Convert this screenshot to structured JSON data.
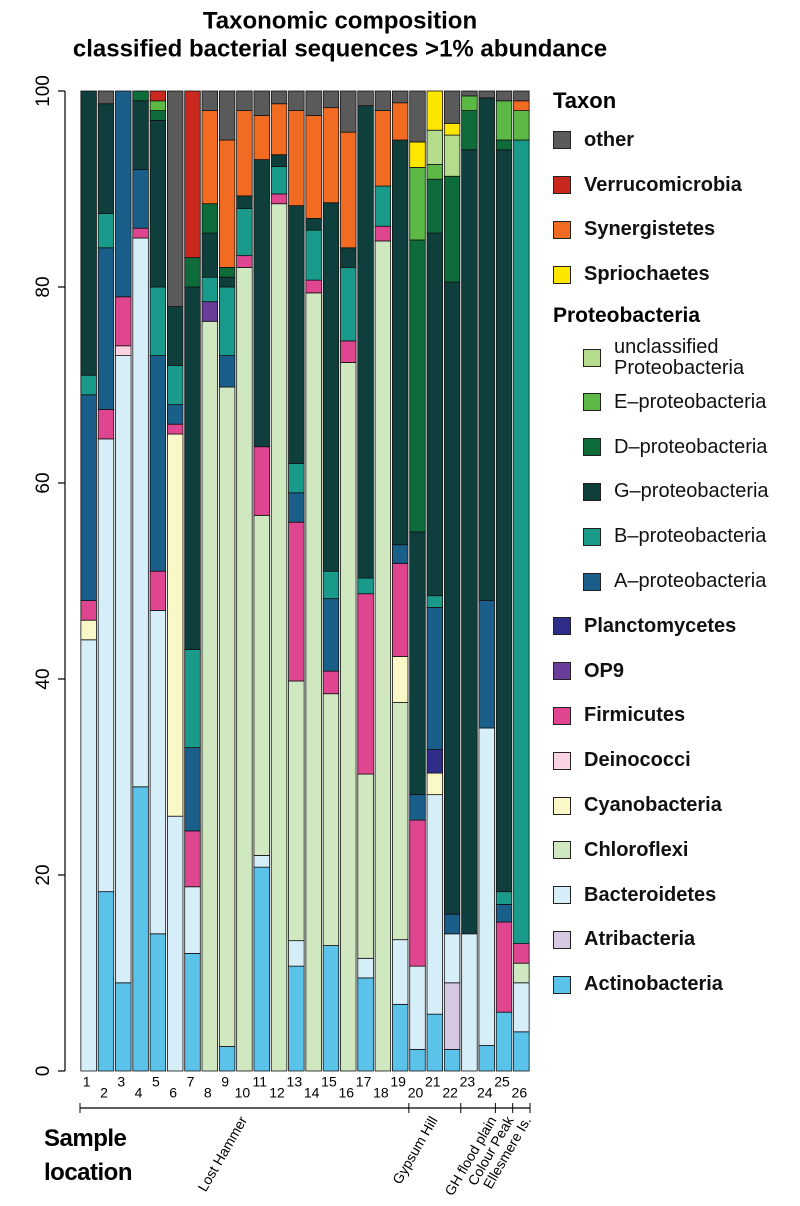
{
  "chart_data": {
    "type": "stacked_bar",
    "title": "Taxonomic composition",
    "subtitle": "classified bacterial sequences >1% abundance",
    "xlabel": "Sample location",
    "legend_title": "Taxon",
    "categories": [
      "1",
      "2",
      "3",
      "4",
      "5",
      "6",
      "7",
      "8",
      "9",
      "10",
      "11",
      "12",
      "13",
      "14",
      "15",
      "16",
      "17",
      "18",
      "19",
      "20",
      "21",
      "22",
      "23",
      "24",
      "25",
      "26"
    ],
    "groups": [
      {
        "name": "Lost Hammer",
        "count": 19
      },
      {
        "name": "Gypsum Hill",
        "count": 3
      },
      {
        "name": "GH flood plain",
        "count": 2
      },
      {
        "name": "Colour Peak",
        "count": 1
      },
      {
        "name": "Ellesmere Is.",
        "count": 1
      }
    ],
    "ylim": [
      0,
      100
    ],
    "yticks": [
      0,
      20,
      40,
      60,
      80,
      100
    ],
    "series": [
      {
        "name": "Actinobacteria",
        "color": "#5bc2ea",
        "values": [
          0,
          18.3,
          9,
          29,
          14,
          0,
          12,
          0,
          2.5,
          0,
          20.8,
          0,
          10.7,
          0,
          12.8,
          0,
          9.5,
          0,
          6.8,
          2.2,
          5.8,
          2.2,
          0,
          2.6,
          6,
          4
        ]
      },
      {
        "name": "Atribacteria",
        "color": "#d7c8e2",
        "values": [
          0,
          0,
          0,
          0,
          0,
          0,
          0,
          0,
          0,
          0,
          0,
          0,
          0,
          0,
          0,
          0,
          0,
          0,
          0,
          0,
          0,
          6.8,
          0,
          0,
          0,
          0
        ]
      },
      {
        "name": "Bacteroidetes",
        "color": "#d6eef8",
        "values": [
          44,
          46.2,
          64,
          56,
          33,
          26,
          6.8,
          0,
          0,
          0,
          1.2,
          0,
          2.6,
          0,
          0,
          0,
          2,
          0,
          6.6,
          8.5,
          22.4,
          5,
          14,
          32.4,
          0,
          5
        ]
      },
      {
        "name": "Chloroflexi",
        "color": "#cfe8c0",
        "values": [
          0,
          0,
          0,
          0,
          0,
          0,
          0,
          76.5,
          67.3,
          82,
          34.7,
          88.5,
          26.5,
          79.4,
          25.7,
          72.3,
          18.8,
          84.7,
          24.2,
          0,
          0,
          0,
          0,
          0,
          0,
          2
        ]
      },
      {
        "name": "Cyanobacteria",
        "color": "#fbf8c8",
        "values": [
          2,
          0,
          0,
          0,
          0,
          39,
          0,
          0,
          0,
          0,
          0,
          0,
          0,
          0,
          0,
          0,
          0,
          0,
          4.7,
          0,
          2.2,
          0,
          0,
          0,
          0,
          0
        ]
      },
      {
        "name": "Deinococci",
        "color": "#fcd3e2",
        "values": [
          0,
          0,
          1,
          0,
          0,
          0,
          0,
          0,
          0,
          0,
          0,
          0,
          0,
          0,
          0,
          0,
          0,
          0,
          0,
          0,
          0,
          0,
          0,
          0,
          0,
          0
        ]
      },
      {
        "name": "Firmicutes",
        "color": "#e0458f",
        "values": [
          2,
          3,
          5,
          1,
          4,
          1,
          5.7,
          0,
          0,
          1.2,
          7,
          1,
          16.2,
          1.3,
          2.3,
          2.2,
          18.4,
          1.5,
          9.5,
          14.9,
          0,
          0,
          0,
          0,
          9.2,
          2
        ]
      },
      {
        "name": "OP9",
        "color": "#6a3d9a",
        "values": [
          0,
          0,
          0,
          0,
          0,
          0,
          0,
          2,
          0,
          0,
          0,
          0,
          0,
          0,
          0,
          0,
          0,
          0,
          0,
          0,
          0,
          0,
          0,
          0,
          0,
          0
        ]
      },
      {
        "name": "Planctomycetes",
        "color": "#2e2e8a",
        "values": [
          0,
          0,
          0,
          0,
          0,
          0,
          0,
          0,
          0,
          0,
          0,
          0,
          0,
          0,
          0,
          0,
          0,
          0,
          0,
          0,
          2.4,
          0,
          0,
          0,
          0,
          0
        ]
      },
      {
        "name": "A–proteobacteria",
        "group": "Proteobacteria",
        "color": "#1a5e8a",
        "values": [
          21,
          16.5,
          21,
          6,
          22,
          2,
          8.5,
          0,
          3.2,
          0,
          0,
          0,
          3,
          0,
          7.4,
          0,
          0,
          0,
          1.9,
          2.6,
          14.5,
          2,
          0,
          13,
          1.8,
          0
        ]
      },
      {
        "name": "B–proteobacteria",
        "group": "Proteobacteria",
        "color": "#1a9a8a",
        "values": [
          2,
          3.5,
          0,
          0,
          7,
          4,
          10,
          2.5,
          7,
          4.8,
          0,
          2.8,
          3,
          5.1,
          2.8,
          7.5,
          1.6,
          4.1,
          0,
          0,
          1.2,
          0,
          0,
          0,
          1.3,
          82
        ]
      },
      {
        "name": "G–proteobacteria",
        "group": "Proteobacteria",
        "color": "#0f3f3c",
        "values": [
          29,
          11.2,
          0,
          7,
          17,
          6,
          37,
          4.5,
          1,
          1.3,
          29.3,
          1.2,
          26.3,
          1.2,
          37.6,
          2,
          48.2,
          0,
          41.3,
          26.8,
          37,
          64.5,
          80,
          51.3,
          75.7,
          0
        ]
      },
      {
        "name": "D–proteobacteria",
        "group": "Proteobacteria",
        "color": "#0e6b3a",
        "values": [
          0,
          0,
          0,
          1,
          1,
          0,
          3,
          3,
          1,
          0,
          0,
          0,
          0,
          0,
          0,
          0,
          0,
          0,
          0,
          29.8,
          5.5,
          10.8,
          4,
          0,
          1,
          0
        ]
      },
      {
        "name": "E–proteobacteria",
        "group": "Proteobacteria",
        "color": "#5cb946",
        "values": [
          0,
          0,
          0,
          0,
          1,
          0,
          0,
          0,
          0,
          0,
          0,
          0,
          0,
          0,
          0,
          0,
          0,
          0,
          0,
          7.4,
          1.5,
          0,
          1.5,
          0,
          4,
          3
        ]
      },
      {
        "name": "unclassified Proteobacteria",
        "group": "Proteobacteria",
        "color": "#b5dc8c",
        "values": [
          0,
          0,
          0,
          0,
          0,
          0,
          0,
          0,
          0,
          0,
          0,
          0,
          0,
          0,
          0,
          0,
          0,
          0,
          0,
          0,
          3.5,
          4.2,
          0,
          0,
          0,
          0
        ]
      },
      {
        "name": "Spriochaetes",
        "color": "#ffe600",
        "values": [
          0,
          0,
          0,
          0,
          0,
          0,
          0,
          0,
          0,
          0,
          0,
          0,
          0,
          0,
          0,
          0,
          0,
          0,
          0,
          2.6,
          4,
          1.2,
          0,
          0,
          0,
          0
        ]
      },
      {
        "name": "Synergistetes",
        "color": "#f26b22",
        "values": [
          0,
          0,
          0,
          0,
          0,
          0,
          0,
          9.5,
          13,
          8.7,
          4.5,
          5.2,
          9.7,
          10.5,
          9.7,
          11.8,
          0,
          7.7,
          3.8,
          0,
          0,
          0,
          0,
          0,
          0,
          1
        ]
      },
      {
        "name": "Verrucomicrobia",
        "color": "#c8281e",
        "values": [
          0,
          0,
          0,
          0,
          1,
          0,
          17,
          0,
          0,
          0,
          0,
          0,
          0,
          0,
          0,
          0,
          0,
          0,
          0,
          0,
          0,
          0,
          0,
          0,
          0,
          0
        ]
      },
      {
        "name": "other",
        "color": "#5a5a5a",
        "values": [
          0,
          1.3,
          0,
          0,
          0,
          22,
          0,
          2,
          5,
          2,
          2.5,
          1.3,
          2,
          2.5,
          1.7,
          4.2,
          1.5,
          2,
          1.2,
          5.2,
          0,
          3.3,
          0.5,
          0.7,
          1,
          1
        ]
      }
    ]
  }
}
